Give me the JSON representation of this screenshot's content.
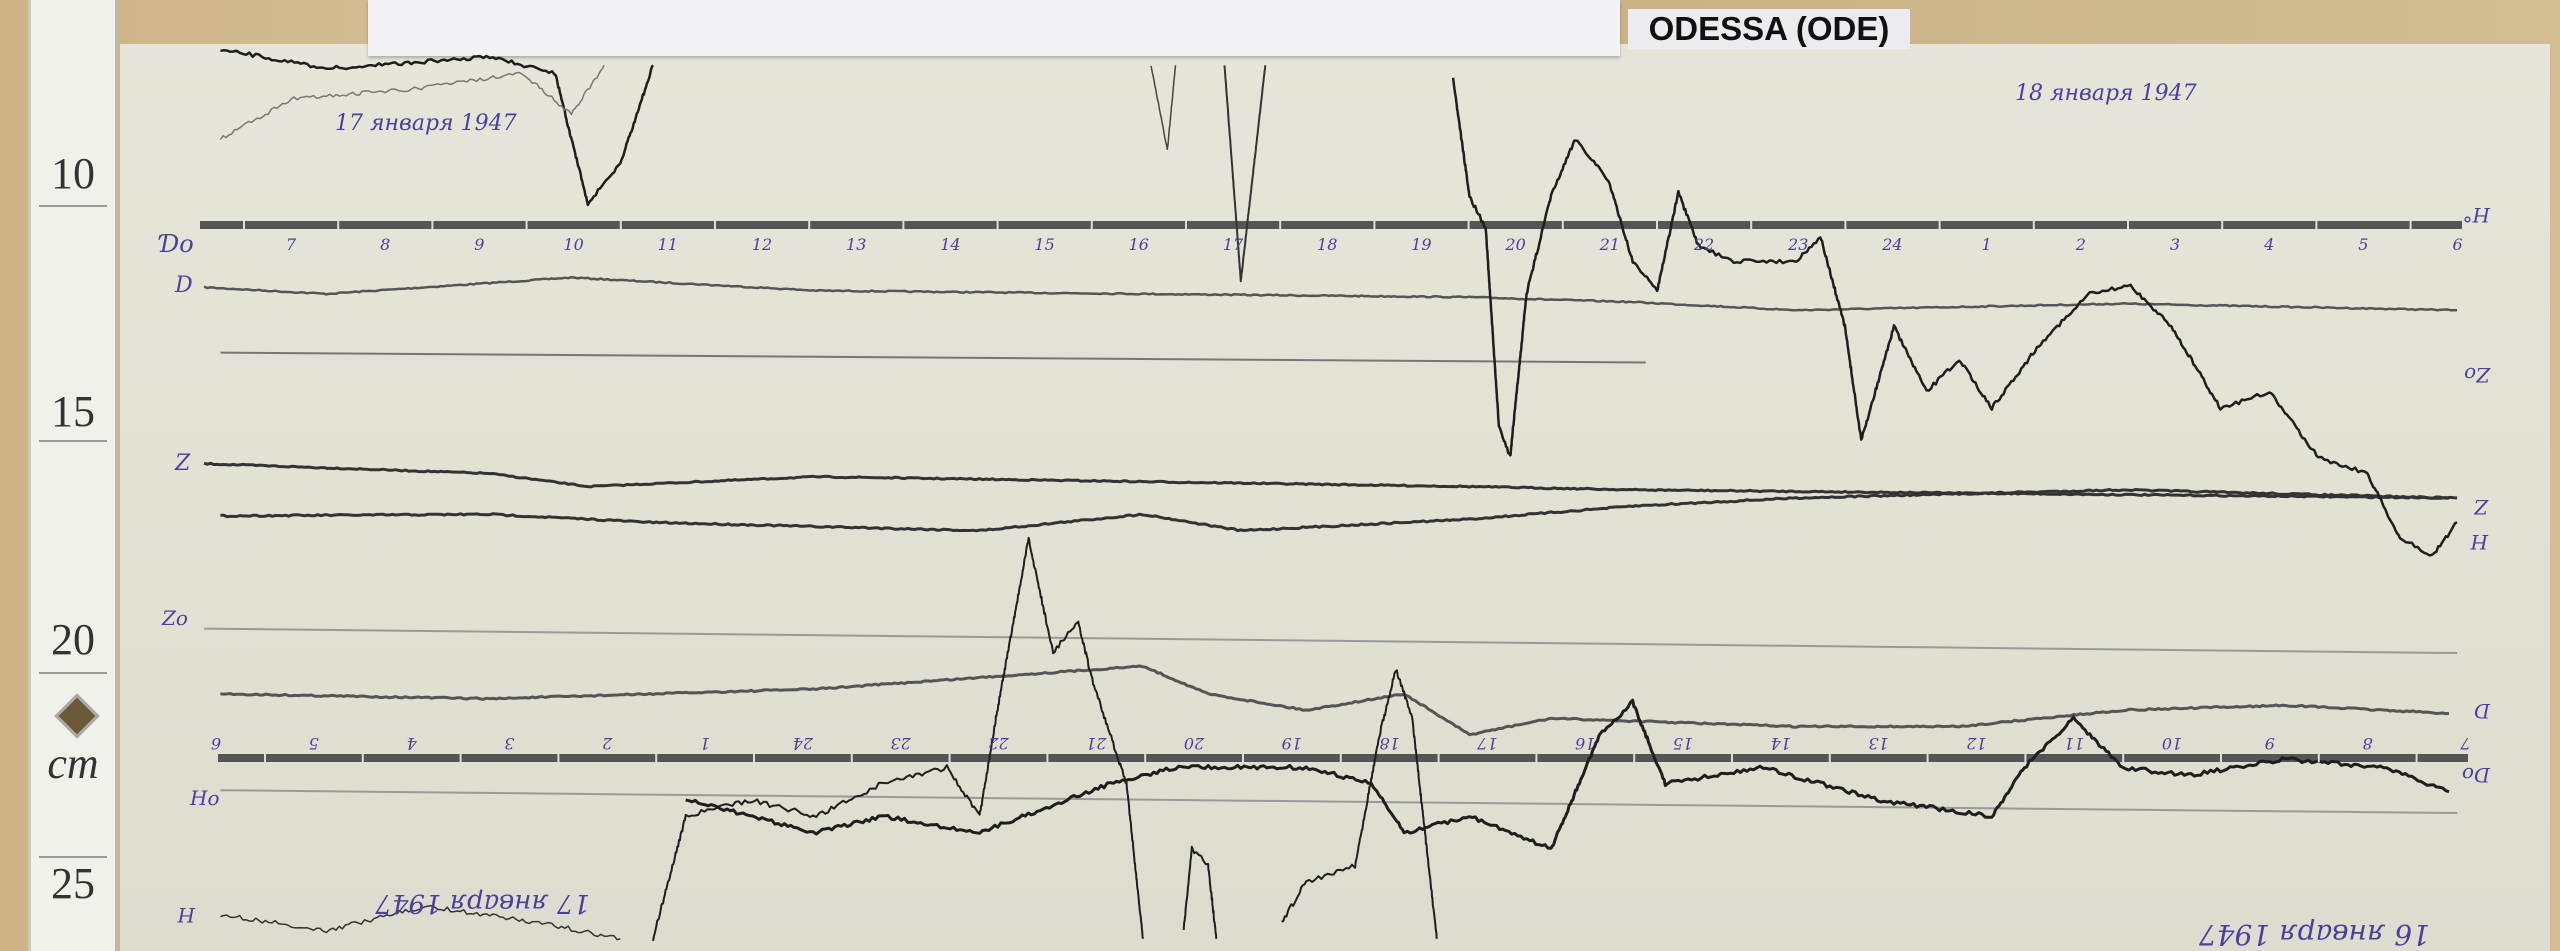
{
  "station_label": "ODESSA (ODE)",
  "ruler": {
    "marks": [
      "10",
      "15",
      "20",
      "cm",
      "25"
    ]
  },
  "handwritten": {
    "date_top_left": "17 января 1947",
    "date_top_right": "18 января 1947",
    "date_bottom_left": "17 января 1947",
    "date_bottom_right": "16 января 1947"
  },
  "trace_labels": {
    "d0": "Ɗo",
    "d": "D",
    "z": "Z",
    "z0": "Zo",
    "h0": "Ho",
    "h_bottom_left": "H",
    "h0_right": "H°",
    "z0_right": "Zo",
    "z_right": "Z",
    "h_right": "H",
    "d_right": "D",
    "d0_right": "Do"
  },
  "top_hour_scale": [
    "7",
    "8",
    "9",
    "10",
    "11",
    "12",
    "13",
    "14",
    "15",
    "16",
    "17",
    "18",
    "19",
    "20",
    "21",
    "22",
    "23",
    "24",
    "1",
    "2",
    "3",
    "4",
    "5",
    "6"
  ],
  "bottom_hour_scale": [
    "6",
    "5",
    "4",
    "3",
    "2",
    "1",
    "24",
    "23",
    "22",
    "21",
    "20",
    "19",
    "18",
    "17",
    "16",
    "15",
    "14",
    "13",
    "12",
    "11",
    "10",
    "9",
    "8",
    "7"
  ],
  "colors": {
    "ink": "#4a3f9a",
    "trace": "#1e1e1e",
    "paper": "#e4e3d7"
  }
}
